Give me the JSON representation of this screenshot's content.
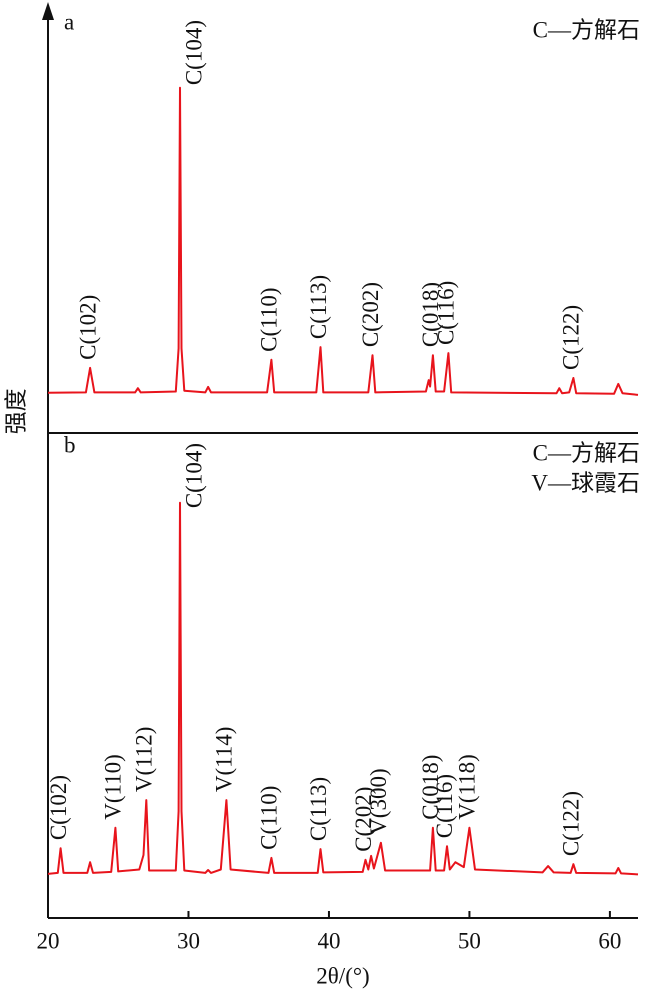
{
  "chart_data": [
    {
      "type": "line",
      "label": "a",
      "ylabel": "强度",
      "color": "#e8141c",
      "notes": [
        "C—方解石"
      ],
      "xlim": [
        20,
        62
      ],
      "ylim": [
        0,
        100
      ],
      "x": [
        20,
        22.7,
        23.0,
        23.3,
        26.2,
        26.4,
        26.6,
        29.1,
        29.3,
        29.4,
        29.5,
        29.7,
        31.2,
        31.4,
        31.6,
        35.6,
        35.9,
        36.1,
        39.1,
        39.4,
        39.6,
        42.8,
        43.1,
        43.3,
        46.9,
        47.1,
        47.2,
        47.4,
        47.6,
        48.2,
        48.5,
        48.7,
        56.2,
        56.4,
        56.6,
        57.1,
        57.4,
        57.6,
        60.3,
        60.6,
        60.9,
        62
      ],
      "values": [
        9.5,
        9.6,
        15.4,
        9.6,
        9.6,
        10.6,
        9.6,
        9.8,
        20,
        81.6,
        20,
        10,
        9.6,
        10.9,
        9.6,
        9.6,
        17.3,
        9.6,
        9.6,
        20.3,
        9.6,
        9.6,
        18.4,
        9.6,
        9.8,
        12.5,
        11,
        18.4,
        9.8,
        9.8,
        18.9,
        9.6,
        9.4,
        10.6,
        9.4,
        9.6,
        13.0,
        9.4,
        9.3,
        11.6,
        9.4,
        9.0
      ],
      "annotations": [
        {
          "text": "C(102)",
          "x": 23.0
        },
        {
          "text": "C(104)",
          "x": 29.4
        },
        {
          "text": "C(110)",
          "x": 35.9
        },
        {
          "text": "C(113)",
          "x": 39.4
        },
        {
          "text": "C(202)",
          "x": 43.1
        },
        {
          "text": "C(018)",
          "x": 47.4
        },
        {
          "text": "C(116)",
          "x": 48.5
        },
        {
          "text": "C(122)",
          "x": 57.4
        }
      ]
    },
    {
      "type": "line",
      "label": "b",
      "xlabel": "2θ/(°)",
      "color": "#e8141c",
      "notes": [
        "C—方解石",
        "V—球霞石"
      ],
      "xlim": [
        20,
        62
      ],
      "ylim": [
        0,
        100
      ],
      "xticks": [
        20,
        30,
        40,
        50,
        60
      ],
      "x": [
        20,
        20.7,
        20.9,
        21.1,
        22.8,
        23.0,
        23.2,
        24.5,
        24.8,
        25.0,
        26.5,
        26.8,
        27.0,
        27.2,
        29.1,
        29.3,
        29.4,
        29.5,
        29.7,
        31.2,
        31.4,
        31.6,
        32.3,
        32.7,
        33.0,
        35.7,
        35.9,
        36.1,
        39.2,
        39.4,
        39.6,
        42.4,
        42.6,
        42.8,
        43.0,
        43.2,
        43.7,
        44.0,
        47.2,
        47.4,
        47.6,
        48.2,
        48.4,
        48.6,
        49.0,
        49.6,
        50.0,
        50.4,
        55.2,
        55.6,
        56.0,
        57.2,
        57.4,
        57.6,
        60.4,
        60.6,
        60.8,
        62
      ],
      "values": [
        9.1,
        9.3,
        14.4,
        9.3,
        9.3,
        11.5,
        9.3,
        9.5,
        18.6,
        9.6,
        10,
        13,
        24.3,
        9.8,
        9.8,
        22,
        85.6,
        22,
        9.8,
        9.3,
        9.9,
        9.3,
        10,
        24.3,
        10,
        9.3,
        12.4,
        9.3,
        9.3,
        14.2,
        9.4,
        9.5,
        12,
        10,
        12.8,
        10.2,
        15.5,
        9.8,
        9.8,
        18.6,
        9.8,
        9.8,
        14.8,
        10,
        11.5,
        10.5,
        18.6,
        10,
        9.4,
        10.7,
        9.4,
        9.3,
        11.1,
        9.3,
        9.2,
        10.3,
        9.2,
        9.0
      ],
      "annotations": [
        {
          "text": "C(102)",
          "x": 20.9
        },
        {
          "text": "V(110)",
          "x": 24.8
        },
        {
          "text": "V(112)",
          "x": 27.0
        },
        {
          "text": "C(104)",
          "x": 29.4
        },
        {
          "text": "V(114)",
          "x": 32.7
        },
        {
          "text": "C(110)",
          "x": 35.9
        },
        {
          "text": "C(113)",
          "x": 39.4
        },
        {
          "text": "C(202)",
          "x": 42.6
        },
        {
          "text": "V(300)",
          "x": 43.7
        },
        {
          "text": "C(018)",
          "x": 47.4
        },
        {
          "text": "C(116)",
          "x": 48.4
        },
        {
          "text": "V(118)",
          "x": 50.0
        },
        {
          "text": "C(122)",
          "x": 57.4
        }
      ]
    }
  ]
}
